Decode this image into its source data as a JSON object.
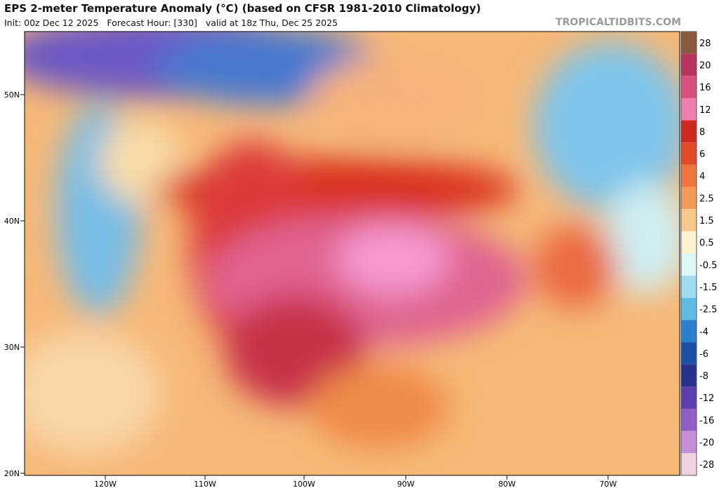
{
  "header": {
    "title": "EPS 2-meter Temperature Anomaly (°C) (based on CFSR 1981-2010 Climatology)",
    "subtitle": "Init: 00z Dec 12 2025   Forecast Hour: [330]   valid at 18z Thu, Dec 25 2025",
    "watermark": "TROPICALTIDBITS.COM"
  },
  "map": {
    "latitude_labels": [
      "50N",
      "40N",
      "30N",
      "20N"
    ],
    "longitude_labels": [
      "120W",
      "110W",
      "100W",
      "90W",
      "80W",
      "70W"
    ]
  },
  "colorbar": [
    {
      "label": "28",
      "color": "#8a5a3e"
    },
    {
      "label": "20",
      "color": "#b8345e"
    },
    {
      "label": "16",
      "color": "#d9507f"
    },
    {
      "label": "12",
      "color": "#ee7fb0"
    },
    {
      "label": "8",
      "color": "#cf2a22"
    },
    {
      "label": "6",
      "color": "#e24a2a"
    },
    {
      "label": "4",
      "color": "#ee7440"
    },
    {
      "label": "2.5",
      "color": "#f49b5c"
    },
    {
      "label": "1.5",
      "color": "#f9c98c"
    },
    {
      "label": "0.5",
      "color": "#fff3d2"
    },
    {
      "label": "-0.5",
      "color": "#dff6f6"
    },
    {
      "label": "-1.5",
      "color": "#9fdcf0"
    },
    {
      "label": "-2.5",
      "color": "#5dbbe6"
    },
    {
      "label": "-4",
      "color": "#2a80cf"
    },
    {
      "label": "-6",
      "color": "#1c4fa6"
    },
    {
      "label": "-8",
      "color": "#2a2f8e"
    },
    {
      "label": "-12",
      "color": "#5e3eae"
    },
    {
      "label": "-16",
      "color": "#8f5ec6"
    },
    {
      "label": "-20",
      "color": "#c38fd8"
    },
    {
      "label": "-28",
      "color": "#f2d2e2"
    }
  ]
}
